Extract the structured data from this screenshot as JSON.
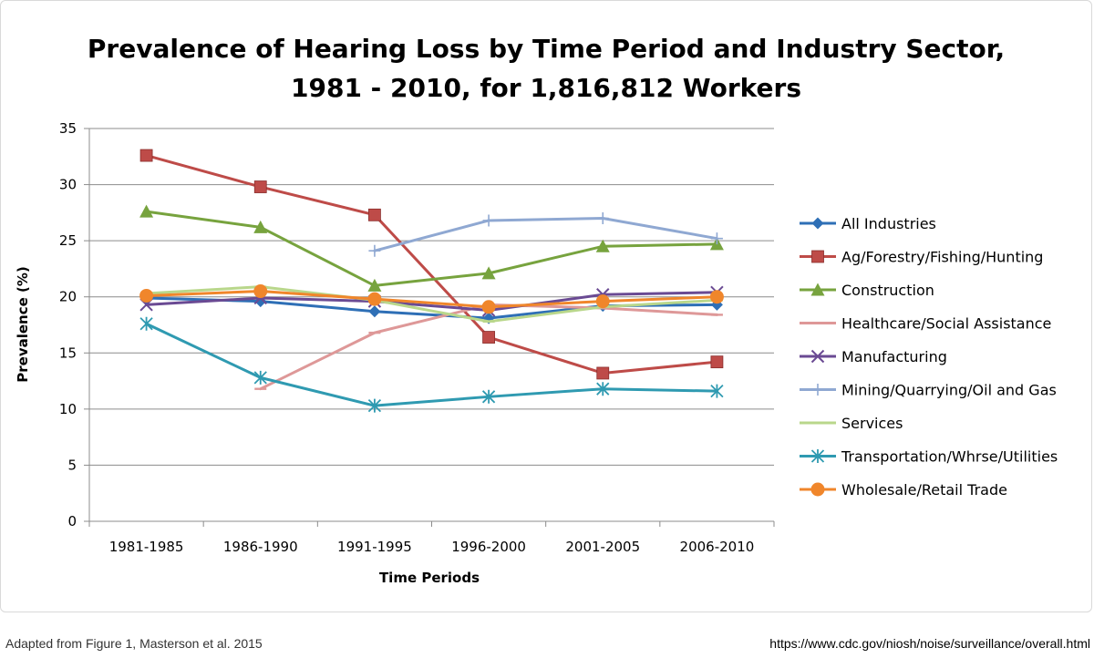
{
  "chart_data": {
    "type": "line",
    "title_lines": [
      "Prevalence of Hearing Loss by Time Period and Industry Sector,",
      "1981 - 2010, for 1,816,812 Workers"
    ],
    "xlabel": "Time Periods",
    "ylabel": "Prevalence (%)",
    "categories": [
      "1981-1985",
      "1986-1990",
      "1991-1995",
      "1996-2000",
      "2001-2005",
      "2006-2010"
    ],
    "ylim": [
      0,
      35
    ],
    "yticks": [
      0,
      5,
      10,
      15,
      20,
      25,
      30,
      35
    ],
    "grid": true,
    "legend_position": "right",
    "series": [
      {
        "name": "All Industries",
        "color": "#2e6fb6",
        "marker": "diamond",
        "values": [
          19.9,
          19.6,
          18.7,
          18.1,
          19.2,
          19.3
        ]
      },
      {
        "name": "Ag/Forestry/Fishing/Hunting",
        "color": "#be4b48",
        "marker": "square",
        "values": [
          32.6,
          29.8,
          27.3,
          16.4,
          13.2,
          14.2
        ]
      },
      {
        "name": "Construction",
        "color": "#77a33e",
        "marker": "triangle",
        "values": [
          27.6,
          26.2,
          21.0,
          22.1,
          24.5,
          24.7
        ]
      },
      {
        "name": "Healthcare/Social Assistance",
        "color": "#de9898",
        "marker": "dash",
        "values": [
          null,
          11.8,
          16.8,
          19.3,
          19.0,
          18.4
        ]
      },
      {
        "name": "Manufacturing",
        "color": "#6a4a93",
        "marker": "x",
        "values": [
          19.3,
          19.9,
          19.6,
          18.8,
          20.2,
          20.4
        ]
      },
      {
        "name": "Mining/Quarrying/Oil and Gas",
        "color": "#8fa8d2",
        "marker": "plus",
        "values": [
          null,
          null,
          24.1,
          26.8,
          27.0,
          25.2
        ]
      },
      {
        "name": "Services",
        "color": "#b9d78b",
        "marker": "dash",
        "values": [
          20.3,
          20.9,
          19.7,
          17.8,
          19.1,
          19.7
        ]
      },
      {
        "name": "Transportation/Whrse/Utilities",
        "color": "#2f9ab1",
        "marker": "asterisk",
        "values": [
          17.6,
          12.8,
          10.3,
          11.1,
          11.8,
          11.6
        ]
      },
      {
        "name": "Wholesale/Retail Trade",
        "color": "#f0862b",
        "marker": "circle",
        "values": [
          20.1,
          20.5,
          19.8,
          19.1,
          19.6,
          20.0
        ]
      }
    ]
  },
  "footer": {
    "left": "Adapted from Figure 1, Masterson et al. 2015",
    "right": "https://www.cdc.gov/niosh/noise/surveillance/overall.html"
  }
}
